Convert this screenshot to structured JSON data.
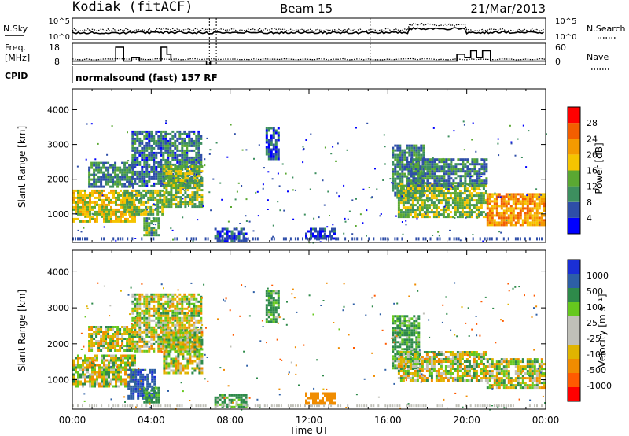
{
  "header": {
    "station": "Kodiak (fitACF)",
    "beam": "Beam 15",
    "date": "21/Mar/2013"
  },
  "strip_labels": {
    "nsky": "N.Sky",
    "nsearch": "N.Search",
    "freq_line1": "Freq.",
    "freq_line2": "[MHz]",
    "nave": "Nave",
    "cpid": "CPID",
    "cpid_value": "normalsound (fast) 157 RF"
  },
  "strip_ticks": {
    "noise_left": [
      "10^5",
      "10^0"
    ],
    "noise_right": [
      "10^5",
      "10^0"
    ],
    "freq_left": [
      "18",
      "8"
    ],
    "nave_right": [
      "60",
      "0"
    ]
  },
  "colors": {
    "power_scale": [
      "#0000ff",
      "#2e4ea8",
      "#3d8f5f",
      "#5aa832",
      "#f5c400",
      "#f49a00",
      "#f25e00",
      "#ff0000"
    ],
    "velocity_scale": [
      "#ff0000",
      "#ff5a00",
      "#f08c00",
      "#e0b400",
      "#c0c0b8",
      "#c0c0b8",
      "#66c81e",
      "#2e8a4a",
      "#2d5fa6",
      "#1a2fd6"
    ]
  },
  "chart_data": [
    {
      "type": "heatmap",
      "title": "Power",
      "xlabel": "",
      "ylabel": "Slant Range [km]",
      "x_ticks": [
        "00:00",
        "04:00",
        "08:00",
        "12:00",
        "16:00",
        "20:00",
        "00:00"
      ],
      "y_ticks": [
        1000,
        2000,
        3000,
        4000
      ],
      "xlim": [
        0,
        24
      ],
      "ylim": [
        180,
        4600
      ],
      "colorbar": {
        "label": "Power [dB]",
        "ticks": [
          "4",
          "8",
          "12",
          "16",
          "20",
          "24",
          "28"
        ],
        "range": [
          0,
          32
        ]
      },
      "regions": [
        {
          "t0": 0.0,
          "t1": 3.2,
          "r0": 800,
          "r1": 1700,
          "level": 18
        },
        {
          "t0": 0.8,
          "t1": 3.0,
          "r0": 1800,
          "r1": 2500,
          "level": 10
        },
        {
          "t0": 2.6,
          "t1": 4.6,
          "r0": 1000,
          "r1": 1700,
          "level": 14
        },
        {
          "t0": 3.6,
          "t1": 4.4,
          "r0": 400,
          "r1": 900,
          "level": 12
        },
        {
          "t0": 3.0,
          "t1": 6.5,
          "r0": 1800,
          "r1": 3400,
          "level": 8
        },
        {
          "t0": 4.6,
          "t1": 6.6,
          "r0": 1200,
          "r1": 2400,
          "level": 14
        },
        {
          "t0": 7.2,
          "t1": 8.8,
          "r0": 250,
          "r1": 600,
          "level": 6
        },
        {
          "t0": 9.8,
          "t1": 10.5,
          "r0": 2600,
          "r1": 3500,
          "level": 6
        },
        {
          "t0": 11.8,
          "t1": 13.3,
          "r0": 300,
          "r1": 600,
          "level": 5
        },
        {
          "t0": 16.2,
          "t1": 17.8,
          "r0": 1500,
          "r1": 3000,
          "level": 10
        },
        {
          "t0": 16.5,
          "t1": 21.0,
          "r0": 900,
          "r1": 1900,
          "level": 14
        },
        {
          "t0": 17.0,
          "t1": 21.0,
          "r0": 1800,
          "r1": 2600,
          "level": 9
        },
        {
          "t0": 21.0,
          "t1": 23.9,
          "r0": 700,
          "r1": 1600,
          "level": 22
        }
      ]
    },
    {
      "type": "heatmap",
      "title": "Velocity",
      "xlabel": "Time UT",
      "ylabel": "Slant Range [km]",
      "x_ticks": [
        "00:00",
        "04:00",
        "08:00",
        "12:00",
        "16:00",
        "20:00",
        "00:00"
      ],
      "y_ticks": [
        1000,
        2000,
        3000,
        4000
      ],
      "xlim": [
        0,
        24
      ],
      "ylim": [
        180,
        4600
      ],
      "colorbar": {
        "label": "Velocity [m s⁻¹]",
        "ticks": [
          "-1000",
          "-500",
          "-100",
          "-25",
          "25",
          "100",
          "500",
          "1000"
        ],
        "range": [
          -1000,
          1000
        ]
      },
      "regions": [
        {
          "t0": 0.0,
          "t1": 3.2,
          "r0": 800,
          "r1": 1700,
          "level": 0
        },
        {
          "t0": 0.8,
          "t1": 3.0,
          "r0": 1800,
          "r1": 2500,
          "level": 0
        },
        {
          "t0": 2.8,
          "t1": 4.2,
          "r0": 500,
          "r1": 1300,
          "level": 900
        },
        {
          "t0": 3.6,
          "t1": 4.4,
          "r0": 350,
          "r1": 800,
          "level": 200
        },
        {
          "t0": 3.0,
          "t1": 6.5,
          "r0": 1800,
          "r1": 3400,
          "level": 0
        },
        {
          "t0": 4.6,
          "t1": 6.6,
          "r0": 1200,
          "r1": 2400,
          "level": 0
        },
        {
          "t0": 7.2,
          "t1": 8.8,
          "r0": 250,
          "r1": 600,
          "level": 150
        },
        {
          "t0": 9.8,
          "t1": 10.5,
          "r0": 2600,
          "r1": 3500,
          "level": 150
        },
        {
          "t0": 11.8,
          "t1": 13.3,
          "r0": 350,
          "r1": 650,
          "level": -300
        },
        {
          "t0": 16.2,
          "t1": 17.6,
          "r0": 1300,
          "r1": 2800,
          "level": 150
        },
        {
          "t0": 16.5,
          "t1": 21.0,
          "r0": 1000,
          "r1": 1800,
          "level": 0
        },
        {
          "t0": 21.0,
          "t1": 23.9,
          "r0": 800,
          "r1": 1600,
          "level": 0
        }
      ]
    }
  ],
  "strip_data": {
    "freq_segments": [
      [
        0.0,
        2.2,
        10
      ],
      [
        2.2,
        2.6,
        18
      ],
      [
        2.6,
        3.0,
        10
      ],
      [
        3.0,
        3.4,
        12
      ],
      [
        3.4,
        4.5,
        10
      ],
      [
        4.5,
        4.8,
        18
      ],
      [
        4.8,
        5.0,
        14
      ],
      [
        5.0,
        6.8,
        10
      ],
      [
        6.8,
        7.0,
        8
      ],
      [
        7.0,
        15.1,
        10
      ],
      [
        15.1,
        19.5,
        10
      ],
      [
        19.5,
        19.9,
        14
      ],
      [
        19.9,
        20.2,
        12
      ],
      [
        20.2,
        20.5,
        16
      ],
      [
        20.5,
        20.8,
        12
      ],
      [
        20.8,
        21.2,
        16
      ],
      [
        21.2,
        24.0,
        10
      ]
    ]
  }
}
